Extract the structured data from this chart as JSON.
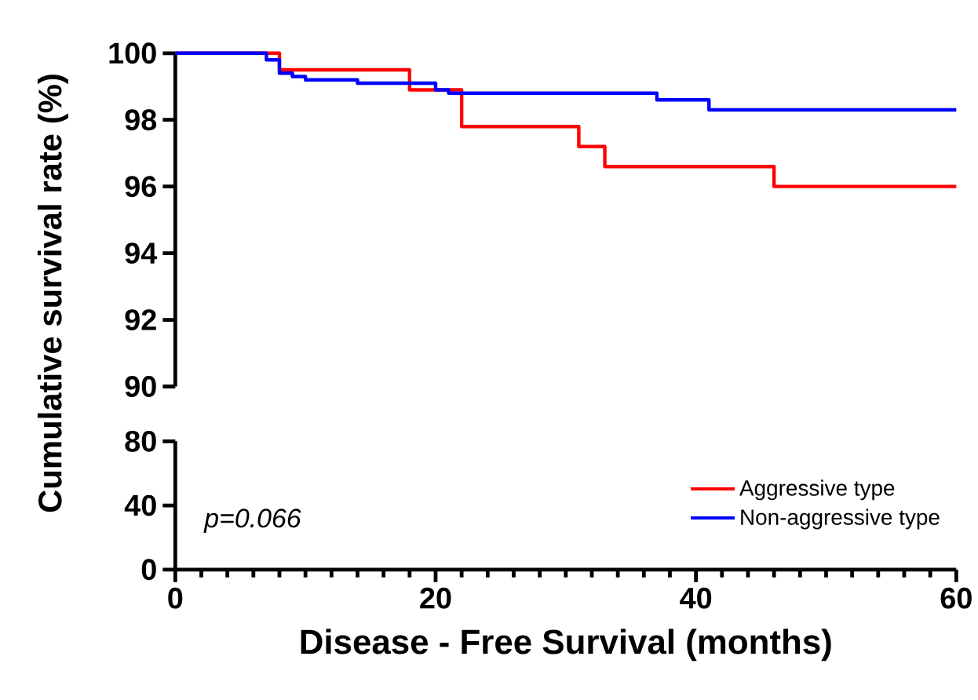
{
  "chart_data": [
    {
      "type": "step",
      "ylabel": "Cumulative survival rate (%)",
      "xlim": [
        0,
        60
      ],
      "ylim": [
        90,
        100
      ],
      "yticks": [
        90,
        92,
        94,
        96,
        98,
        100
      ],
      "tick_labels": "y",
      "legend": "bottom right",
      "series": [
        {
          "name": "Aggressive type",
          "color": "#ff0000",
          "x": [
            0,
            8,
            18,
            22,
            31,
            33,
            46,
            60
          ],
          "values": [
            100,
            99.5,
            98.9,
            97.8,
            97.2,
            96.6,
            96.0,
            96.0
          ]
        },
        {
          "name": "Non-aggressive type",
          "color": "#0000ff",
          "x": [
            0,
            7,
            8,
            9,
            10,
            14,
            20,
            21,
            37,
            41,
            60
          ],
          "values": [
            100,
            99.8,
            99.4,
            99.3,
            99.2,
            99.1,
            98.9,
            98.8,
            98.6,
            98.3,
            98.3
          ]
        }
      ]
    },
    {
      "type": "step",
      "xlabel": "Disease - Free Survival (months)",
      "xlim": [
        0,
        60
      ],
      "xticks": [
        0,
        20,
        40,
        60
      ],
      "ylim": [
        0,
        80
      ],
      "yticks": [
        0,
        40,
        80
      ],
      "annotations": [
        "p=0.066"
      ]
    }
  ]
}
